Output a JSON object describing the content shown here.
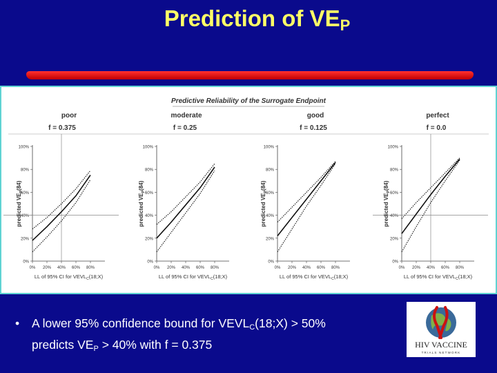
{
  "slide": {
    "title_main": "Prediction of VE",
    "title_sub": "P",
    "bullet_marker": "•",
    "bullet_parts": [
      "A lower 95% confidence bound for VEVL",
      "C",
      "(18;X) > 50%",
      "predicts VE",
      "P",
      " > 40% with f = 0.375"
    ],
    "logo_text_main": "HIV VACCINE",
    "logo_text_sub": "TRIALS NETWORK"
  },
  "figure": {
    "title": "Predictive Reliability of the Surrogate Endpoint"
  },
  "chart_data": [
    {
      "type": "line",
      "header": "poor",
      "f_label": "f = 0.375",
      "xlabel": "LL of 95% CI for VEVL",
      "xlabel_sub": "C",
      "xlabel_tail": "(18;X)",
      "ylabel": "predicted VE",
      "ylabel_sub": "P",
      "ylabel_tail": "(84)",
      "x_ticks": [
        "0%",
        "20%",
        "40%",
        "60%",
        "80%"
      ],
      "y_ticks": [
        "0%",
        "20%",
        "40%",
        "60%",
        "80%",
        "100%"
      ],
      "xlim": [
        0,
        100
      ],
      "ylim": [
        0,
        100
      ],
      "series": [
        {
          "style": "solid",
          "x": [
            0,
            20,
            40,
            60,
            80
          ],
          "y": [
            18,
            30,
            43,
            57,
            75
          ]
        },
        {
          "style": "dotted",
          "x": [
            0,
            20,
            40,
            60,
            80
          ],
          "y": [
            28,
            38,
            50,
            63,
            79
          ]
        },
        {
          "style": "dotted",
          "x": [
            0,
            20,
            40,
            60,
            80
          ],
          "y": [
            8,
            21,
            35,
            51,
            71
          ]
        }
      ],
      "reference_x": 40,
      "reference_y": 40
    },
    {
      "type": "line",
      "header": "moderate",
      "f_label": "f = 0.25",
      "xlabel": "LL of 95% CI for VEVL",
      "xlabel_sub": "C",
      "xlabel_tail": "(18;X)",
      "ylabel": "predicted VE",
      "ylabel_sub": "P",
      "ylabel_tail": "(84)",
      "x_ticks": [
        "0%",
        "20%",
        "40%",
        "60%",
        "80%"
      ],
      "y_ticks": [
        "0%",
        "20%",
        "40%",
        "60%",
        "80%",
        "100%"
      ],
      "xlim": [
        0,
        100
      ],
      "ylim": [
        0,
        100
      ],
      "series": [
        {
          "style": "solid",
          "x": [
            0,
            20,
            40,
            60,
            80
          ],
          "y": [
            20,
            34,
            49,
            64,
            82
          ]
        },
        {
          "style": "dotted",
          "x": [
            0,
            20,
            40,
            60,
            80
          ],
          "y": [
            32,
            43,
            56,
            69,
            85
          ]
        },
        {
          "style": "dotted",
          "x": [
            0,
            20,
            40,
            60,
            80
          ],
          "y": [
            8,
            25,
            42,
            59,
            79
          ]
        }
      ]
    },
    {
      "type": "line",
      "header": "good",
      "f_label": "f = 0.125",
      "xlabel": "LL of 95% CI for VEVL",
      "xlabel_sub": "C",
      "xlabel_tail": "(18;X)",
      "ylabel": "predicted VE",
      "ylabel_sub": "P",
      "ylabel_tail": "(84)",
      "x_ticks": [
        "0%",
        "20%",
        "40%",
        "60%",
        "80%"
      ],
      "y_ticks": [
        "0%",
        "20%",
        "40%",
        "60%",
        "80%",
        "100%"
      ],
      "xlim": [
        0,
        100
      ],
      "ylim": [
        0,
        100
      ],
      "series": [
        {
          "style": "solid",
          "x": [
            0,
            20,
            40,
            60,
            80
          ],
          "y": [
            22,
            38,
            54,
            70,
            86
          ]
        },
        {
          "style": "dotted",
          "x": [
            0,
            20,
            40,
            60,
            80
          ],
          "y": [
            34,
            47,
            60,
            73,
            87
          ]
        },
        {
          "style": "dotted",
          "x": [
            0,
            20,
            40,
            60,
            80
          ],
          "y": [
            8,
            28,
            48,
            66,
            85
          ]
        }
      ]
    },
    {
      "type": "line",
      "header": "perfect",
      "f_label": "f = 0.0",
      "xlabel": "LL of 95% CI for VEVL",
      "xlabel_sub": "C",
      "xlabel_tail": "(18;X)",
      "ylabel": "predicted VE",
      "ylabel_sub": "P",
      "ylabel_tail": "(84)",
      "x_ticks": [
        "0%",
        "20%",
        "40%",
        "60%",
        "80%"
      ],
      "y_ticks": [
        "0%",
        "20%",
        "40%",
        "60%",
        "80%",
        "100%"
      ],
      "xlim": [
        0,
        100
      ],
      "ylim": [
        0,
        100
      ],
      "series": [
        {
          "style": "solid",
          "x": [
            0,
            20,
            40,
            60,
            80
          ],
          "y": [
            24,
            41,
            58,
            74,
            89
          ]
        },
        {
          "style": "dotted",
          "x": [
            0,
            20,
            40,
            60,
            80
          ],
          "y": [
            37,
            51,
            64,
            77,
            90
          ]
        },
        {
          "style": "dotted",
          "x": [
            0,
            20,
            40,
            60,
            80
          ],
          "y": [
            8,
            30,
            51,
            70,
            88
          ]
        }
      ],
      "reference_x": 40,
      "reference_y": 40
    }
  ]
}
